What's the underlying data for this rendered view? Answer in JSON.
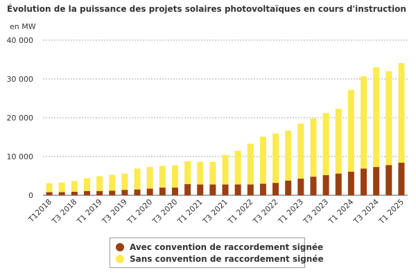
{
  "chart_data": {
    "type": "bar",
    "stacked": true,
    "title": "Évolution de la puissance des projets solaires photovoltaïques en cours d'instruction",
    "ylabel": "en MW",
    "xlabel": "",
    "ylim": [
      0,
      40000
    ],
    "yticks": [
      0,
      10000,
      20000,
      30000,
      40000
    ],
    "ytick_labels": [
      "0",
      "10 000",
      "20 000",
      "30 000",
      "40 000"
    ],
    "grid": true,
    "legend_position": "bottom",
    "categories": [
      "T1 2018",
      "T2 2018",
      "T3 2018",
      "T4 2018",
      "T1 2019",
      "T2 2019",
      "T3 2019",
      "T4 2019",
      "T1 2020",
      "T2 2020",
      "T3 2020",
      "T4 2020",
      "T1 2021",
      "T2 2021",
      "T3 2021",
      "T4 2021",
      "T1 2022",
      "T2 2022",
      "T3 2022",
      "T4 2022",
      "T1 2023",
      "T2 2023",
      "T3 2023",
      "T4 2023",
      "T1 2024",
      "T2 2024",
      "T3 2024",
      "T4 2024",
      "T1 2025"
    ],
    "xtick_labels": [
      {
        "index": 0,
        "label": "T12018"
      },
      {
        "index": 2,
        "label": "T3 2018"
      },
      {
        "index": 4,
        "label": "T1 2019"
      },
      {
        "index": 6,
        "label": "T3 2019"
      },
      {
        "index": 8,
        "label": "T1 2020"
      },
      {
        "index": 10,
        "label": "T3 2020"
      },
      {
        "index": 12,
        "label": "T1 2021"
      },
      {
        "index": 14,
        "label": "T3 2021"
      },
      {
        "index": 16,
        "label": "T1 2022"
      },
      {
        "index": 18,
        "label": "T3 2022"
      },
      {
        "index": 20,
        "label": "T1 2023"
      },
      {
        "index": 22,
        "label": "T3 2023"
      },
      {
        "index": 24,
        "label": "T1 2024"
      },
      {
        "index": 26,
        "label": "T3 2024"
      },
      {
        "index": 28,
        "label": "T1 2025"
      }
    ],
    "series": [
      {
        "name": "Avec convention de raccordement signée",
        "color": "#9b3f12",
        "values": [
          800,
          800,
          900,
          1100,
          1100,
          1200,
          1400,
          1500,
          1700,
          2000,
          2000,
          2900,
          2800,
          2800,
          2800,
          2800,
          2800,
          3000,
          3200,
          3800,
          4300,
          4800,
          5200,
          5600,
          6100,
          6900,
          7300,
          7800,
          8400
        ]
      },
      {
        "name": "Sans convention de raccordement signée",
        "color": "#fcea4f",
        "values": [
          2300,
          2500,
          2800,
          3300,
          3800,
          4100,
          4200,
          5400,
          5600,
          5600,
          5700,
          5900,
          5800,
          5800,
          7600,
          8700,
          10500,
          12100,
          12700,
          12900,
          14200,
          15000,
          16000,
          16700,
          21100,
          23800,
          25700,
          24200,
          25700
        ]
      }
    ]
  }
}
